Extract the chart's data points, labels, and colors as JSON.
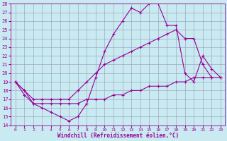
{
  "xlabel": "Windchill (Refroidissement éolien,°C)",
  "bg_color": "#c8eaf0",
  "line_color": "#990099",
  "xlim": [
    -0.5,
    23.5
  ],
  "ylim": [
    14,
    28
  ],
  "xticks": [
    0,
    1,
    2,
    3,
    4,
    5,
    6,
    7,
    8,
    9,
    10,
    11,
    12,
    13,
    14,
    15,
    16,
    17,
    18,
    19,
    20,
    21,
    22,
    23
  ],
  "yticks": [
    14,
    15,
    16,
    17,
    18,
    19,
    20,
    21,
    22,
    23,
    24,
    25,
    26,
    27,
    28
  ],
  "series": [
    {
      "x": [
        0,
        1,
        2,
        3,
        4,
        5,
        6,
        7,
        8,
        9,
        10,
        11,
        12,
        13,
        14,
        15,
        16,
        17,
        18,
        19,
        20,
        21,
        22,
        23
      ],
      "y": [
        19,
        18,
        16.5,
        16,
        15.5,
        15,
        14.5,
        15,
        16.5,
        19.5,
        22.5,
        24.5,
        26,
        27.5,
        27,
        28,
        28,
        25.5,
        25.5,
        20,
        19,
        22,
        20.5,
        19.5
      ]
    },
    {
      "x": [
        0,
        1,
        2,
        3,
        4,
        5,
        6,
        7,
        8,
        9,
        10,
        11,
        12,
        13,
        14,
        15,
        16,
        17,
        18,
        19,
        20,
        21,
        22
      ],
      "y": [
        19,
        18,
        17,
        17,
        17,
        17,
        17,
        18,
        19,
        20,
        21,
        21.5,
        22,
        22.5,
        23,
        23.5,
        24,
        24.5,
        25,
        24,
        24,
        21,
        19.5
      ]
    },
    {
      "x": [
        0,
        1,
        2,
        3,
        4,
        5,
        6,
        7,
        8,
        9,
        10,
        11,
        12,
        13,
        14,
        15,
        16,
        17,
        18,
        19,
        20,
        21,
        22,
        23
      ],
      "y": [
        19,
        17.5,
        16.5,
        16.5,
        16.5,
        16.5,
        16.5,
        16.5,
        17,
        17,
        17,
        17.5,
        17.5,
        18,
        18,
        18.5,
        18.5,
        18.5,
        19,
        19,
        19.5,
        19.5,
        19.5,
        19.5
      ]
    }
  ]
}
